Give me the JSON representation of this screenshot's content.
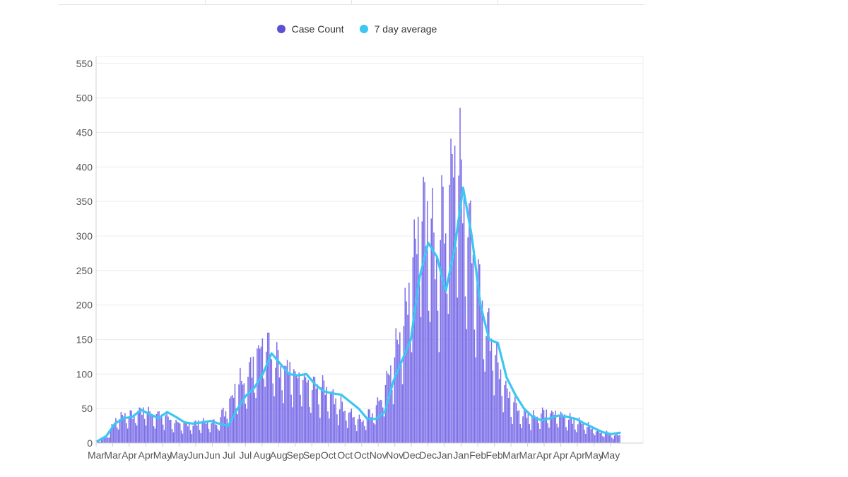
{
  "legend": {
    "case_count_label": "Case Count",
    "avg_label": "7 day average"
  },
  "colors": {
    "bars": "#7b6ee8",
    "bars_edge": "#6a5ad8",
    "line": "#3cc6f2",
    "grid": "#ececec",
    "legend_case": "#5b50d6",
    "legend_avg": "#3cc6f2"
  },
  "chart_data": {
    "type": "bar",
    "title": "",
    "xlabel": "",
    "ylabel": "",
    "ylim": [
      0,
      560
    ],
    "yticks": [
      0,
      50,
      100,
      150,
      200,
      250,
      300,
      350,
      400,
      450,
      500,
      550
    ],
    "x_tick_labels": [
      "Mar",
      "Mar",
      "Apr",
      "Apr",
      "May",
      "May",
      "Jun",
      "Jun",
      "Jul",
      "Jul",
      "Aug",
      "Aug",
      "Sep",
      "Sep",
      "Oct",
      "Oct",
      "Oct",
      "Nov",
      "Nov",
      "Dec",
      "Dec",
      "Jan",
      "Jan",
      "Feb",
      "Feb",
      "Mar",
      "Mar",
      "Apr",
      "Apr",
      "Apr",
      "May",
      "May"
    ],
    "grid": true,
    "legend_position": "top-center",
    "series": [
      {
        "name": "Case Count",
        "type": "bar",
        "weekly_anchor_values": [
          2,
          8,
          30,
          38,
          40,
          45,
          35,
          40,
          30,
          28,
          25,
          28,
          30,
          25,
          45,
          70,
          85,
          100,
          140,
          120,
          100,
          95,
          90,
          80,
          75,
          70,
          55,
          45,
          35,
          30,
          40,
          60,
          100,
          140,
          200,
          300,
          300,
          250,
          300,
          400,
          330,
          250,
          180,
          140,
          90,
          60,
          40,
          35,
          35,
          40,
          40,
          35,
          30,
          25,
          20,
          15,
          12,
          10
        ]
      },
      {
        "name": "7 day average",
        "type": "line",
        "weekly_values": [
          3,
          10,
          28,
          36,
          38,
          48,
          42,
          36,
          45,
          38,
          30,
          28,
          30,
          32,
          28,
          25,
          48,
          68,
          80,
          100,
          130,
          115,
          100,
          98,
          100,
          85,
          75,
          72,
          70,
          60,
          50,
          35,
          35,
          45,
          90,
          120,
          150,
          240,
          290,
          270,
          220,
          280,
          370,
          300,
          200,
          150,
          145,
          95,
          70,
          50,
          38,
          33,
          36,
          40,
          38,
          35,
          28,
          22,
          16,
          13,
          15
        ]
      }
    ]
  }
}
